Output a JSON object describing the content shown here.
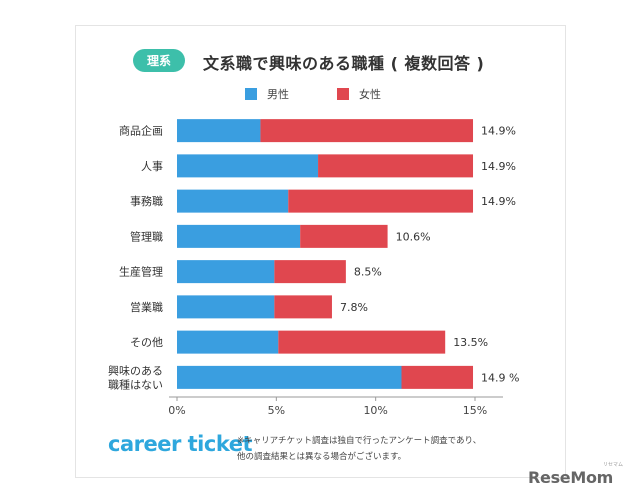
{
  "badge": "理系",
  "title": "文系職で興味のある職種 ( 複数回答 )",
  "brand": "career ticket",
  "note_lines": [
    "※キャリアチケット調査は独自で行ったアンケート調査であり、",
    "他の調査結果とは異なる場合がございます。"
  ],
  "watermark": "ReseMom",
  "watermark_sub": "リセマム",
  "colors": {
    "male": "#3a9ee0",
    "female": "#e0474f",
    "badge": "#3dbfaa",
    "brand": "#2ea7dd"
  },
  "chart_data": {
    "type": "bar",
    "orientation": "horizontal",
    "stacked": true,
    "categories": [
      "商品企画",
      "人事",
      "事務職",
      "管理職",
      "生産管理",
      "営業職",
      "その他",
      "興味のある\n職種はない"
    ],
    "series": [
      {
        "name": "男性",
        "values": [
          4.2,
          7.1,
          5.6,
          6.2,
          4.9,
          4.9,
          5.1,
          11.3
        ]
      },
      {
        "name": "女性",
        "values": [
          10.7,
          7.8,
          9.3,
          4.4,
          3.6,
          2.9,
          8.4,
          3.6
        ]
      }
    ],
    "totals": [
      14.9,
      14.9,
      14.9,
      10.6,
      8.5,
      7.8,
      13.5,
      14.9
    ],
    "total_labels": [
      "14.9%",
      "14.9%",
      "14.9%",
      "10.6%",
      "8.5%",
      "7.8%",
      "13.5%",
      "14.9 %"
    ],
    "xlim": [
      0,
      15
    ],
    "xticks": [
      0,
      5,
      10,
      15
    ],
    "xtick_labels": [
      "0%",
      "5%",
      "10%",
      "15%"
    ],
    "legend_position": "top"
  }
}
